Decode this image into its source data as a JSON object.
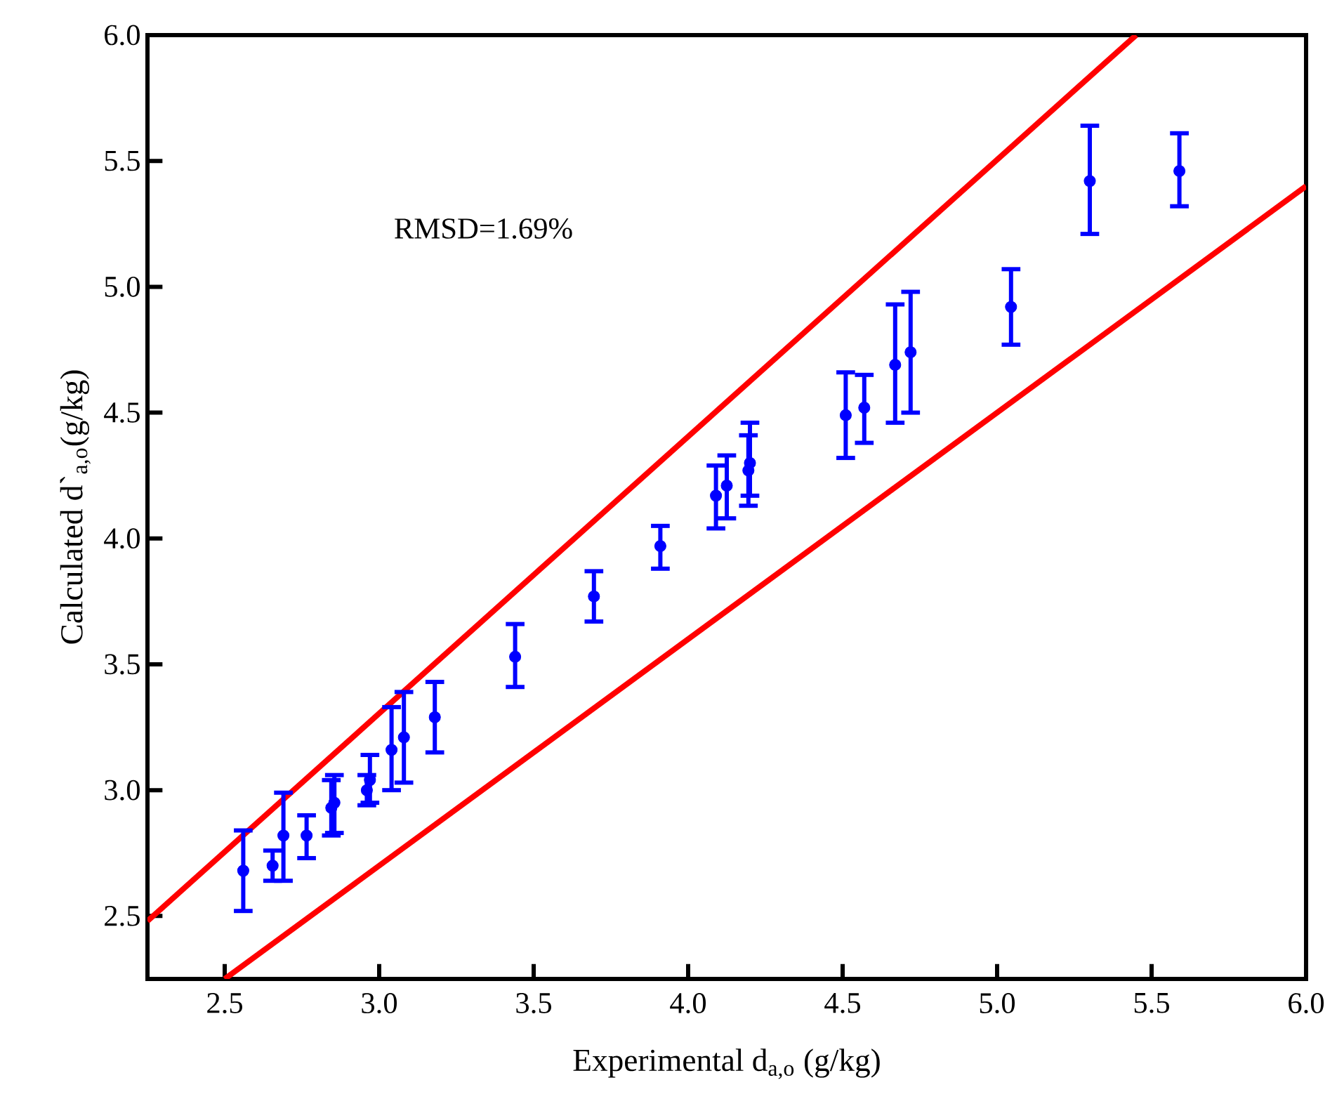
{
  "chart_data": {
    "type": "scatter",
    "xlabel": "Experimental d$_{a,o}$ (g/kg)",
    "ylabel": "Calculated d`$_{a,o}$(g/kg)",
    "annotations": [
      "RMSD=1.69%"
    ],
    "xlim": [
      2.25,
      6.0
    ],
    "ylim": [
      2.25,
      6.0
    ],
    "xticks": [
      {
        "value": 2.5,
        "label": "2.5"
      },
      {
        "value": 3,
        "label": "3.0"
      },
      {
        "value": 3.5,
        "label": "3.5"
      },
      {
        "value": 4,
        "label": "4.0"
      },
      {
        "value": 4.5,
        "label": "4.5"
      },
      {
        "value": 5,
        "label": "5.0"
      },
      {
        "value": 5.5,
        "label": "5.5"
      },
      {
        "value": 6,
        "label": "6.0"
      }
    ],
    "yticks": [
      {
        "value": 2.5,
        "label": "2.5"
      },
      {
        "value": 3,
        "label": "3.0"
      },
      {
        "value": 3.5,
        "label": "3.5"
      },
      {
        "value": 4,
        "label": "4.0"
      },
      {
        "value": 4.5,
        "label": "4.5"
      },
      {
        "value": 5,
        "label": "5.0"
      },
      {
        "value": 5.5,
        "label": "5.5"
      },
      {
        "value": 6,
        "label": "6.0"
      }
    ],
    "grid": false,
    "marker": "circle",
    "series": [
      {
        "type": "line",
        "color": "#ff0000",
        "line_style": "solid",
        "marker": "none",
        "x": [
          2.25,
          5.45
        ],
        "values": [
          2.48,
          6.0
        ]
      },
      {
        "type": "line",
        "color": "#ff0000",
        "line_style": "solid",
        "marker": "none",
        "x": [
          2.5,
          6.0
        ],
        "values": [
          2.25,
          5.4
        ]
      },
      {
        "color": "#0000ff",
        "x": [
          2.56,
          2.655,
          2.69,
          2.765,
          2.845,
          2.855,
          2.96,
          2.97,
          3.04,
          3.08,
          3.18,
          3.44,
          3.695,
          3.91,
          4.09,
          4.125,
          4.195,
          4.2,
          4.51,
          4.57,
          4.67,
          4.72,
          5.045,
          5.3,
          5.59
        ],
        "values": [
          2.68,
          2.7,
          2.82,
          2.82,
          2.93,
          2.95,
          3.0,
          3.04,
          3.16,
          3.21,
          3.29,
          3.53,
          3.77,
          3.97,
          4.17,
          4.21,
          4.27,
          4.3,
          4.49,
          4.52,
          4.69,
          4.74,
          4.92,
          5.42,
          5.46
        ],
        "errors": [
          [
            2.52,
            2.84
          ],
          [
            2.64,
            2.76
          ],
          [
            2.64,
            2.99
          ],
          [
            2.73,
            2.9
          ],
          [
            2.82,
            3.04
          ],
          [
            2.83,
            3.06
          ],
          [
            2.94,
            3.06
          ],
          [
            2.95,
            3.14
          ],
          [
            3.0,
            3.33
          ],
          [
            3.03,
            3.39
          ],
          [
            3.15,
            3.43
          ],
          [
            3.41,
            3.66
          ],
          [
            3.67,
            3.87
          ],
          [
            3.88,
            4.05
          ],
          [
            4.04,
            4.29
          ],
          [
            4.08,
            4.33
          ],
          [
            4.13,
            4.41
          ],
          [
            4.17,
            4.46
          ],
          [
            4.32,
            4.66
          ],
          [
            4.38,
            4.65
          ],
          [
            4.46,
            4.93
          ],
          [
            4.5,
            4.98
          ],
          [
            4.77,
            5.07
          ],
          [
            5.21,
            5.64
          ],
          [
            5.32,
            5.61
          ]
        ]
      }
    ]
  }
}
